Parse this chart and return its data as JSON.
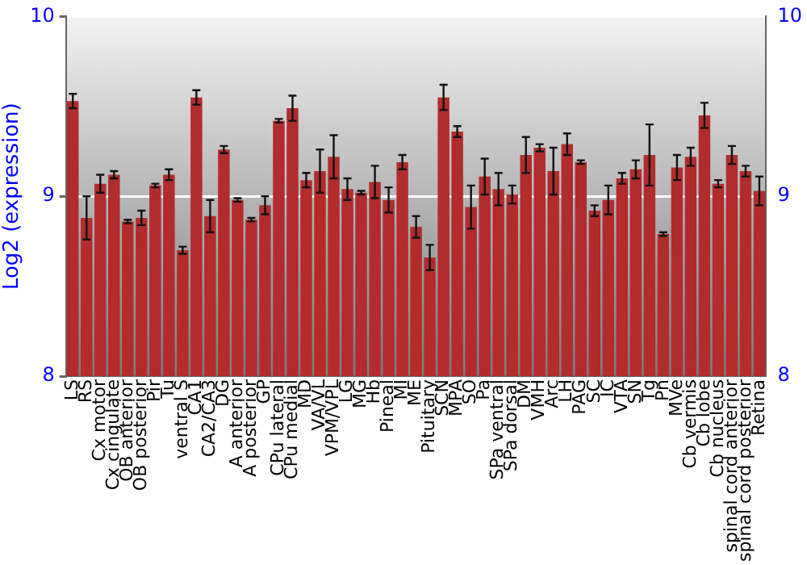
{
  "chart_data": {
    "type": "bar",
    "ylabel": "Log2 (expression)",
    "categories": [
      "LS",
      "RS",
      "Cx motor",
      "Cx cingulate",
      "OB anterior",
      "OB posterior",
      "Pir",
      "Tu",
      "ventral S",
      "CA1",
      "CA2/CA3",
      "DG",
      "A anterior",
      "A posterior",
      "GP",
      "CPu lateral",
      "CPu medial",
      "MD",
      "VA/VL",
      "VPM/VPL",
      "LG",
      "MG",
      "Hb",
      "Pineal",
      "MI",
      "ME",
      "Pituitary",
      "SCN",
      "MPA",
      "SO",
      "Pa",
      "SPa ventral",
      "SPa dorsal",
      "DM",
      "VMH",
      "Arc",
      "LH",
      "PAG",
      "SC",
      "IC",
      "VTA",
      "SN",
      "Tg",
      "Pn",
      "MVe",
      "Cb vermis",
      "Cb lobe",
      "Cb nucleus",
      "spinal cord anterior",
      "spinal cord posterior",
      "Retina"
    ],
    "series": [
      {
        "color": "#b22c2c",
        "values": [
          9.53,
          8.88,
          9.07,
          9.12,
          8.86,
          8.88,
          9.06,
          9.12,
          8.7,
          9.55,
          8.89,
          9.26,
          8.98,
          8.87,
          8.95,
          9.42,
          9.49,
          9.09,
          9.14,
          9.22,
          9.04,
          9.02,
          9.08,
          8.98,
          9.19,
          8.83,
          8.66,
          9.55,
          9.36,
          8.94,
          9.11,
          9.04,
          9.01,
          9.23,
          9.27,
          9.14,
          9.29,
          9.19,
          8.92,
          8.98,
          9.1,
          9.15,
          9.23,
          8.79,
          9.16,
          9.22,
          9.45,
          9.07,
          9.23,
          9.14,
          9.03
        ],
        "errors": [
          0.04,
          0.12,
          0.05,
          0.02,
          0.01,
          0.04,
          0.01,
          0.03,
          0.02,
          0.04,
          0.09,
          0.02,
          0.01,
          0.01,
          0.05,
          0.01,
          0.07,
          0.04,
          0.12,
          0.12,
          0.06,
          0.01,
          0.09,
          0.07,
          0.04,
          0.06,
          0.07,
          0.07,
          0.03,
          0.12,
          0.1,
          0.09,
          0.05,
          0.1,
          0.02,
          0.13,
          0.06,
          0.01,
          0.03,
          0.08,
          0.03,
          0.05,
          0.17,
          0.01,
          0.07,
          0.05,
          0.07,
          0.02,
          0.05,
          0.03,
          0.08
        ]
      }
    ],
    "ylim": [
      8,
      10
    ],
    "yticks": [
      8,
      9,
      10
    ],
    "y2lim": [
      8,
      10
    ],
    "y2ticks": [
      8,
      9,
      10
    ],
    "grid": "y",
    "legend": false
  }
}
